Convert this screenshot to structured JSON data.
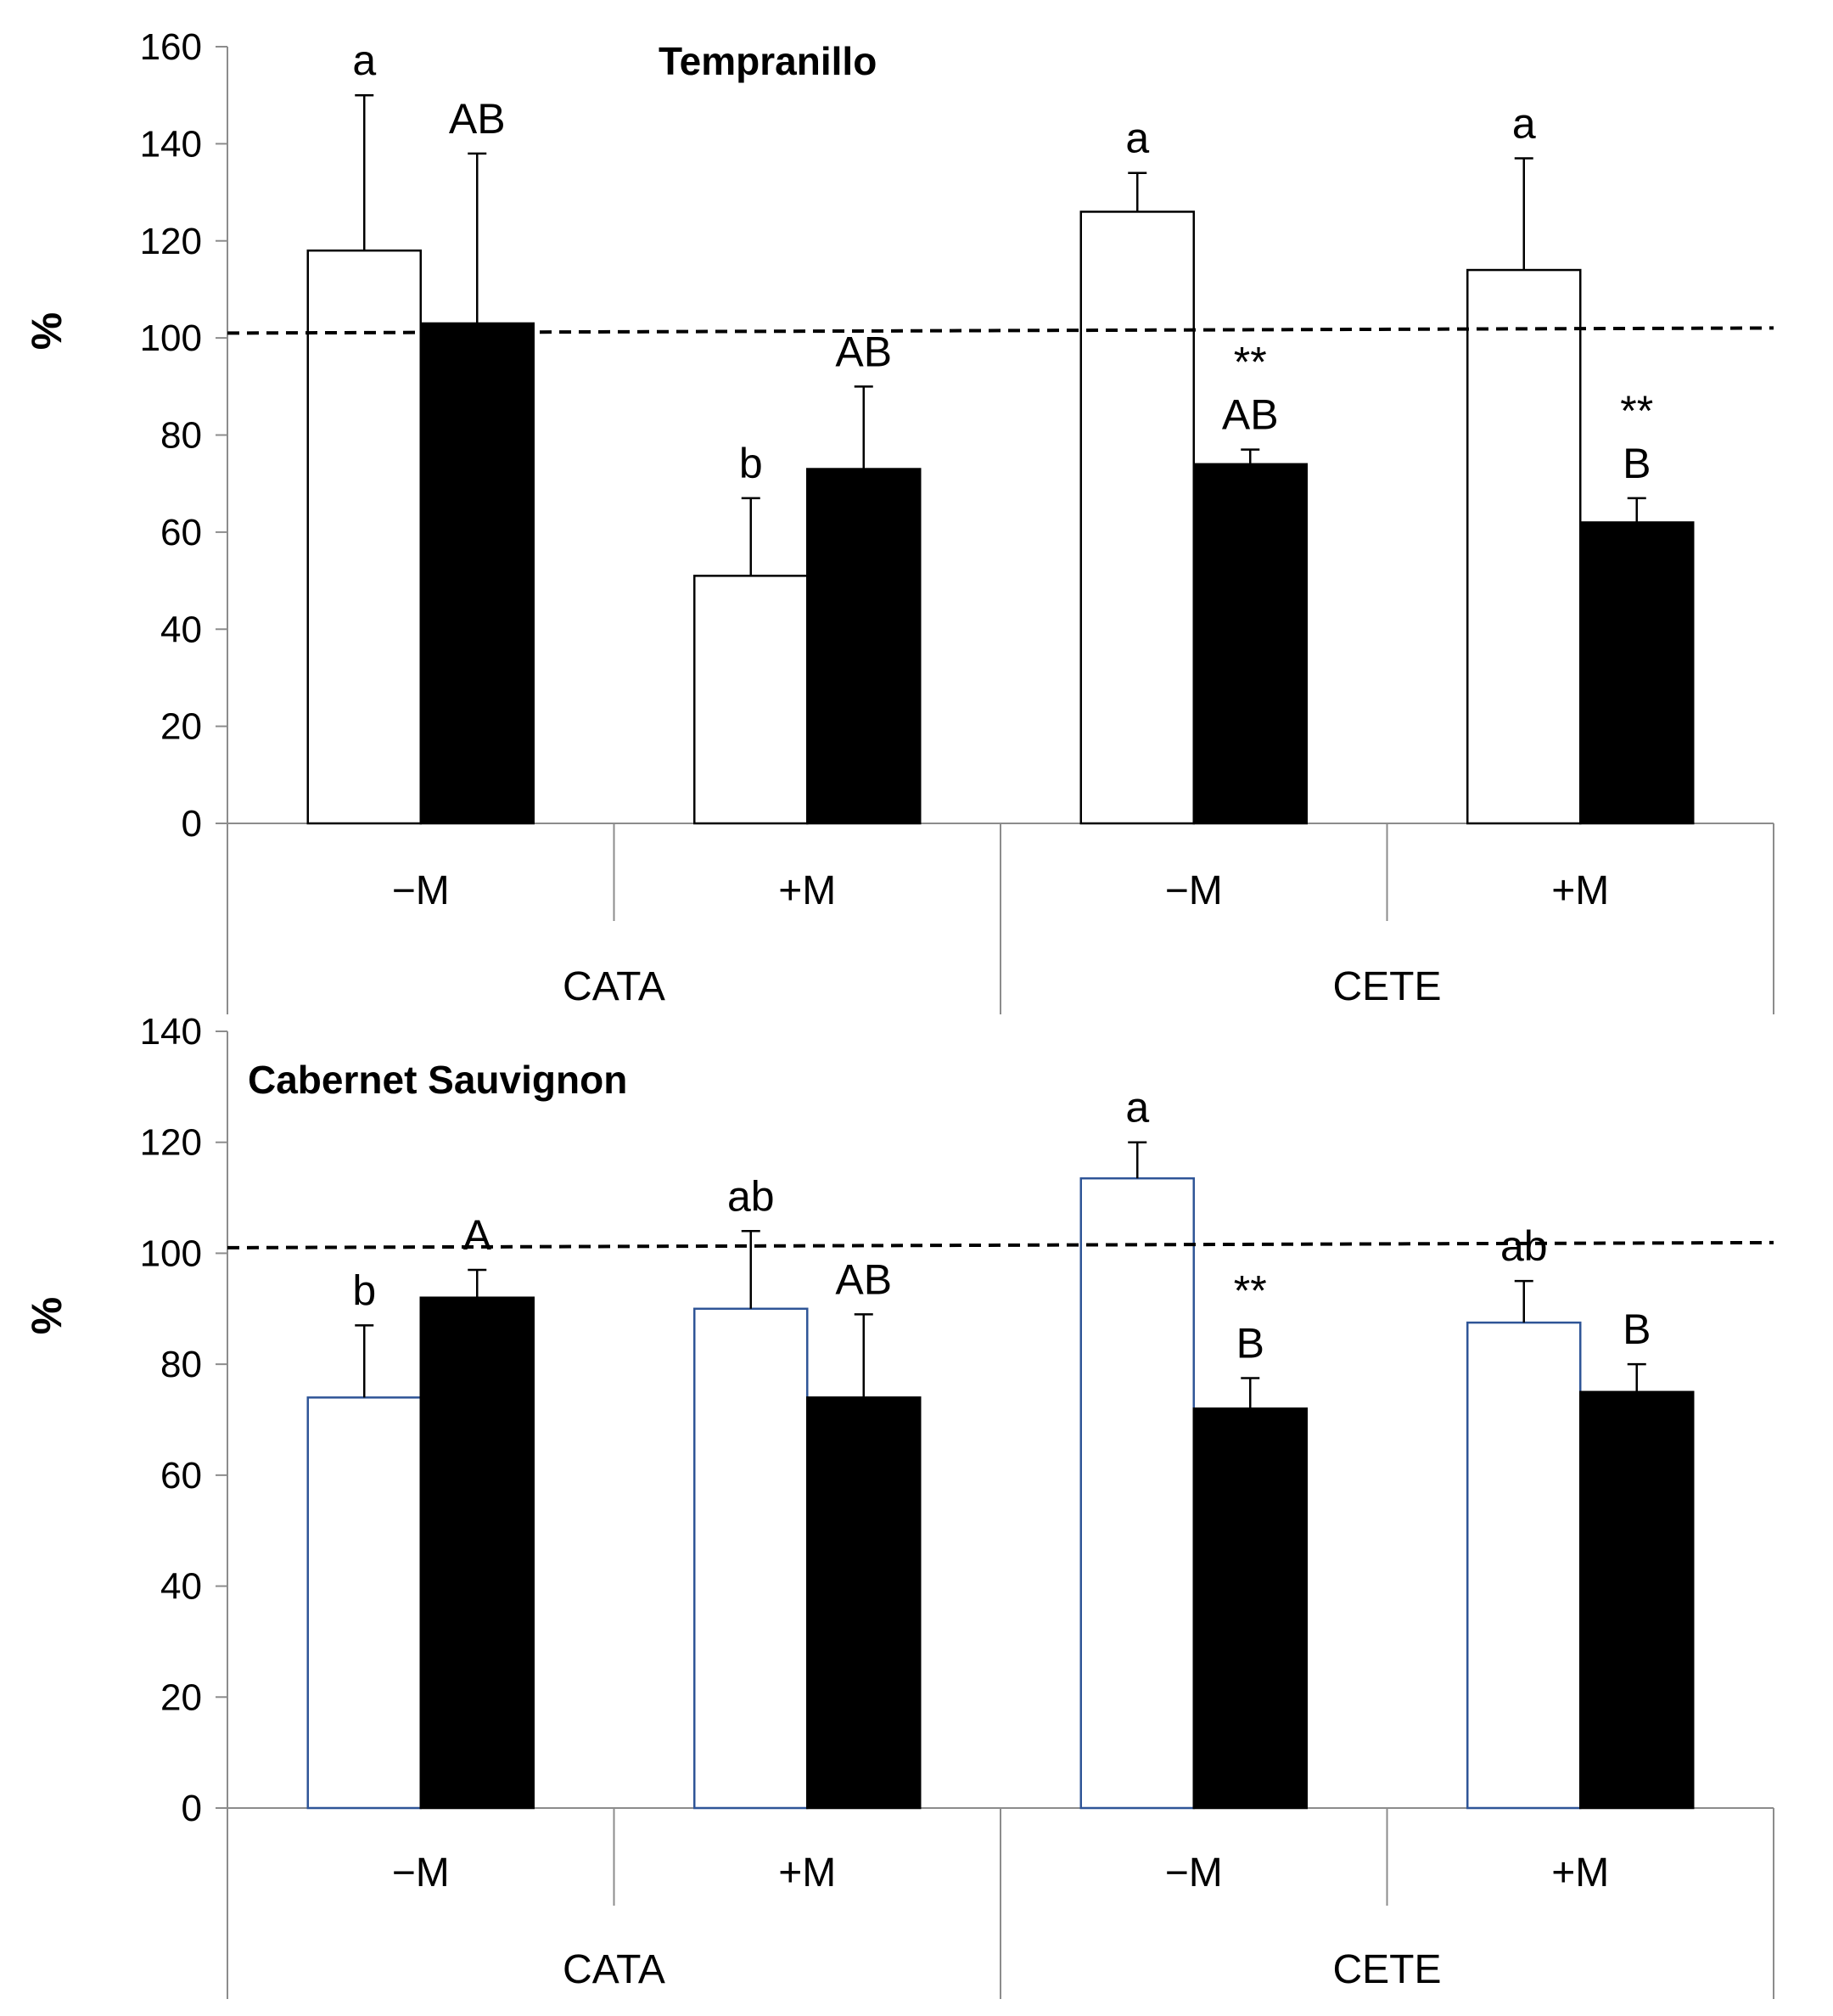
{
  "chart_data": [
    {
      "type": "bar",
      "title": "Tempranillo",
      "ylabel": "%",
      "ylim": [
        0,
        160
      ],
      "yticks": [
        0,
        20,
        40,
        60,
        80,
        100,
        120,
        140,
        160
      ],
      "reference_line": 101,
      "groups": [
        {
          "name": "CATA",
          "subgroups": [
            "−M",
            "+M"
          ]
        },
        {
          "name": "CETE",
          "subgroups": [
            "−M",
            "+M"
          ]
        }
      ],
      "categories": [
        "CATA −M",
        "CATA +M",
        "CETE −M",
        "CETE +M"
      ],
      "category_labels": [
        "−M",
        "+M",
        "−M",
        "+M"
      ],
      "group_labels": [
        "CATA",
        "CETE"
      ],
      "series": [
        {
          "name": "white",
          "color": "#ffffff",
          "edge": "#000000",
          "values": [
            118,
            51,
            126,
            114
          ],
          "errors": [
            32,
            16,
            8,
            23
          ],
          "labels": [
            "a",
            "b",
            "a",
            "a"
          ]
        },
        {
          "name": "black",
          "color": "#000000",
          "edge": "#000000",
          "values": [
            103,
            73,
            74,
            62
          ],
          "errors": [
            35,
            17,
            3,
            5
          ],
          "labels": [
            "AB",
            "AB",
            "AB",
            "B"
          ],
          "marks": [
            "",
            "",
            "**",
            "**"
          ]
        }
      ]
    },
    {
      "type": "bar",
      "title": "Cabernet Sauvignon",
      "ylabel": "%",
      "ylim": [
        0,
        140
      ],
      "yticks": [
        0,
        20,
        40,
        60,
        80,
        100,
        120,
        140
      ],
      "reference_line": 101,
      "groups": [
        {
          "name": "CATA",
          "subgroups": [
            "−M",
            "+M"
          ]
        },
        {
          "name": "CETE",
          "subgroups": [
            "−M",
            "+M"
          ]
        }
      ],
      "categories": [
        "CATA −M",
        "CATA +M",
        "CETE −M",
        "CETE +M"
      ],
      "category_labels": [
        "−M",
        "+M",
        "−M",
        "+M"
      ],
      "group_labels": [
        "CATA",
        "CETE"
      ],
      "series": [
        {
          "name": "white",
          "color": "#ffffff",
          "edge": "#2f5597",
          "values": [
            74,
            90,
            113.5,
            87.5
          ],
          "errors": [
            13,
            14,
            6.5,
            7.5
          ],
          "labels": [
            "b",
            "ab",
            "a",
            "ab"
          ]
        },
        {
          "name": "black",
          "color": "#000000",
          "edge": "#000000",
          "values": [
            92,
            74,
            72,
            75
          ],
          "errors": [
            5,
            15,
            5.5,
            5
          ],
          "labels": [
            "A",
            "AB",
            "B",
            "B"
          ],
          "marks": [
            "",
            "",
            "**",
            ""
          ]
        }
      ]
    }
  ]
}
